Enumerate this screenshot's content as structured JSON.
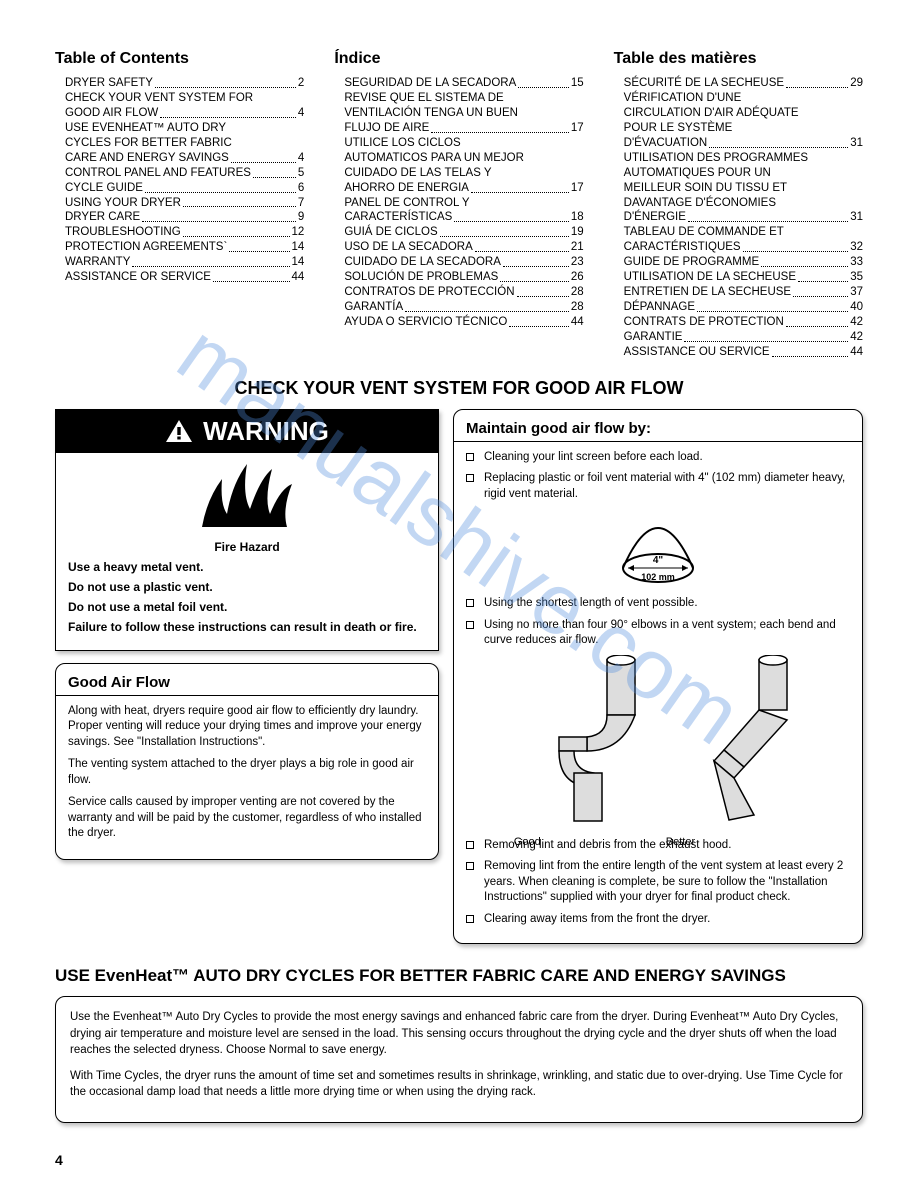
{
  "toc_en": {
    "title": "Table of Contents",
    "items": [
      {
        "label": "DRYER SAFETY",
        "page": "2"
      },
      {
        "label": "CHECK YOUR VENT SYSTEM FOR GOOD AIR FLOW",
        "page": "4"
      },
      {
        "label": "USE EVENHEAT™ AUTO DRY CYCLES FOR BETTER FABRIC CARE AND ENERGY SAVINGS",
        "page": "4"
      },
      {
        "label": "CONTROL PANEL AND FEATURES",
        "page": "5"
      },
      {
        "label": "CYCLE GUIDE",
        "page": "6"
      },
      {
        "label": "USING YOUR DRYER",
        "page": "7"
      },
      {
        "label": "DRYER CARE",
        "page": "9"
      },
      {
        "label": "TROUBLESHOOTING",
        "page": "12"
      },
      {
        "label": "PROTECTION AGREEMENTS`",
        "page": "14"
      },
      {
        "label": "WARRANTY",
        "page": "14"
      },
      {
        "label": "ASSISTANCE OR SERVICE",
        "page": "44"
      }
    ]
  },
  "toc_es": {
    "title": "Índice",
    "items": [
      {
        "label": "SEGURIDAD DE LA SECADORA",
        "page": "15"
      },
      {
        "label": "REVISE QUE EL SISTEMA DE VENTILACIÓN TENGA UN BUEN FLUJO DE AIRE",
        "page": "17"
      },
      {
        "label": "UTILICE LOS CICLOS AUTOMATICOS PARA UN MEJOR CUIDADO DE LAS TELAS Y AHORRO DE ENERGIA",
        "page": "17"
      },
      {
        "label": "PANEL DE CONTROL Y CARACTERÍSTICAS",
        "page": "18"
      },
      {
        "label": "GUIÁ DE CICLOS",
        "page": "19"
      },
      {
        "label": "USO DE LA SECADORA",
        "page": "21"
      },
      {
        "label": "CUIDADO DE LA SECADORA",
        "page": "23"
      },
      {
        "label": "SOLUCIÓN DE PROBLEMAS",
        "page": "26"
      },
      {
        "label": "CONTRATOS DE PROTECCIÓN",
        "page": "28"
      },
      {
        "label": "GARANTÍA",
        "page": "28"
      },
      {
        "label": "AYUDA O SERVICIO TÉCNICO",
        "page": "44"
      }
    ]
  },
  "toc_fr": {
    "title": "Table des matières",
    "items": [
      {
        "label": "SÉCURITÉ DE LA SECHEUSE",
        "page": "29"
      },
      {
        "label": "VÉRIFICATION D'UNE CIRCULATION D'AIR ADÉQUATE POUR LE SYSTÈME D'ÉVACUATION",
        "page": "31"
      },
      {
        "label": "UTILISATION DES PROGRAMMES AUTOMATIQUES POUR UN MEILLEUR SOIN DU TISSU ET DAVANTAGE D'ÉCONOMIES D'ÉNERGIE",
        "page": "31"
      },
      {
        "label": "TABLEAU DE COMMANDE ET CARACTÉRISTIQUES",
        "page": "32"
      },
      {
        "label": "GUIDE DE PROGRAMME",
        "page": "33"
      },
      {
        "label": "UTILISATION DE LA SECHEUSE",
        "page": "35"
      },
      {
        "label": "ENTRETIEN DE LA SECHEUSE",
        "page": "37"
      },
      {
        "label": "DÉPANNAGE",
        "page": "40"
      },
      {
        "label": "CONTRATS DE PROTECTION",
        "page": "42"
      },
      {
        "label": "GARANTIE",
        "page": "42"
      },
      {
        "label": "ASSISTANCE OU SERVICE",
        "page": "44"
      }
    ]
  },
  "vent_heading": "CHECK YOUR VENT SYSTEM FOR GOOD AIR FLOW",
  "warning": {
    "header": "WARNING",
    "hazard": "Fire Hazard",
    "lines": [
      "Use a heavy metal vent.",
      "Do not use a plastic vent.",
      "Do not use a metal foil vent.",
      "Failure to follow these instructions can result in death or fire."
    ]
  },
  "good_air": {
    "title": "Good Air Flow",
    "p1": "Along with heat, dryers require good air flow to efficiently dry laundry. Proper venting will reduce your drying times and improve your energy savings. See \"Installation Instructions\".",
    "p2": "The venting system attached to the dryer plays a big role in good air flow.",
    "p3": "Service calls caused by improper venting are not covered by the warranty and will be paid by the customer, regardless of who installed the dryer."
  },
  "maintain": {
    "title": "Maintain good air flow by:",
    "b1": "Cleaning your lint screen before each load.",
    "b2": "Replacing plastic or foil vent material with 4\" (102 mm) diameter heavy, rigid vent material.",
    "b3": "Using the shortest length of vent possible.",
    "b4": "Using no more than four 90° elbows in a vent system; each bend and curve reduces air flow.",
    "b5": "Removing lint and debris from the exhaust hood.",
    "b6": "Removing lint from the entire length of the vent system at least every 2 years. When cleaning is complete, be sure to follow the \"Installation Instructions\" supplied with your dryer for final product check.",
    "b7": "Clearing away items from the front the dryer.",
    "good_label": "Good",
    "better_label": "Better",
    "diam_label_4": "4\"",
    "diam_label_mm": "102 mm"
  },
  "evenheat": {
    "heading": "USE EvenHeat™ AUTO DRY CYCLES FOR BETTER FABRIC CARE AND ENERGY SAVINGS",
    "p1": "Use the Evenheat™ Auto Dry Cycles to provide the most energy savings and enhanced fabric care from the dryer. During Evenheat™ Auto Dry Cycles, drying air temperature and moisture level are sensed in the load. This sensing occurs throughout the drying cycle and the dryer shuts off when the load reaches the selected dryness. Choose Normal to save energy.",
    "p2": "With Time Cycles, the dryer runs the amount of time set and sometimes results in shrinkage, wrinkling, and static due to over-drying. Use Time Cycle for the occasional damp load that needs a little more drying time or when using the drying rack."
  },
  "page_number": "4",
  "watermark_text": "manualshive.com"
}
